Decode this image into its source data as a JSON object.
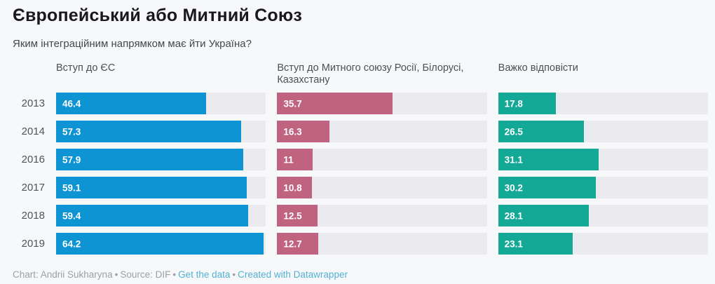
{
  "chart_data": {
    "type": "bar",
    "orientation": "horizontal",
    "title": "Європейський або Митний Союз",
    "subtitle": "Яким інтеграційним напрямком має йти Україна?",
    "categories": [
      "2013",
      "2014",
      "2016",
      "2017",
      "2018",
      "2019"
    ],
    "series": [
      {
        "name": "Вступ до ЄС",
        "color": "#0e94d2",
        "values": [
          46.4,
          57.3,
          57.9,
          59.1,
          59.4,
          64.2
        ]
      },
      {
        "name": "Вступ до Митного союзу Росії, Білорусі, Казахстану",
        "color": "#c06380",
        "values": [
          35.7,
          16.3,
          11,
          10.8,
          12.5,
          12.7
        ]
      },
      {
        "name": "Важко відповісти",
        "color": "#14a896",
        "values": [
          17.8,
          26.5,
          31.1,
          30.2,
          28.1,
          23.1
        ]
      }
    ],
    "xmax": 65,
    "track_color": "#ebeaee",
    "background_color": "#f7f8f9",
    "value_labels": "inside-left",
    "grid": "off",
    "legend_position": "column-headers"
  },
  "footer": {
    "credit": "Chart: Andrii Sukharyna",
    "source": "Source: DIF",
    "sep": "•",
    "get_data_link": "Get the data",
    "datawrapper_link": "Created with Datawrapper",
    "link_color": "#53b0d4"
  }
}
